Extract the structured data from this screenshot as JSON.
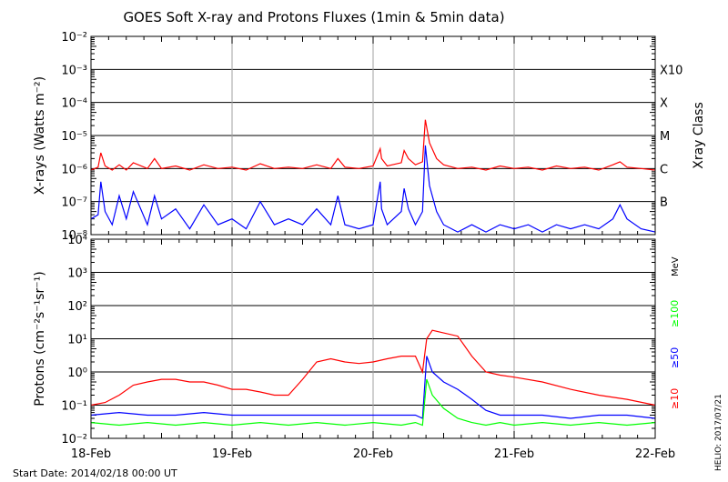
{
  "title": "GOES Soft X-ray and Protons Fluxes   (1min & 5min data)",
  "start_date": "Start Date: 2014/02/18 00:00 UT",
  "side_stamp": "HELIO: 2017/07/21",
  "colors": {
    "red": "#ff0000",
    "blue": "#0000ff",
    "green": "#00ff00",
    "grid": "#000000",
    "day": "#a0a0a0",
    "background": "#ffffff"
  },
  "chart_data": [
    {
      "type": "line",
      "panel": "xray",
      "title": "GOES Soft X-ray and Protons Fluxes   (1min & 5min data)",
      "xlabel": "",
      "ylabel": "X-rays (Watts m⁻²)",
      "y2label": "Xray Class",
      "yscale": "log",
      "ylim": [
        1e-08,
        0.01
      ],
      "ytick_labels": [
        "10⁻²",
        "10⁻³",
        "10⁻⁴",
        "10⁻⁵",
        "10⁻⁶",
        "10⁻⁷",
        "10⁻⁸"
      ],
      "class_labels": [
        "X10",
        "X",
        "M",
        "C",
        "B"
      ],
      "x_range": [
        "18-Feb",
        "22-Feb"
      ],
      "x_day_index": [
        0,
        4
      ],
      "series": [
        {
          "color": "#ff0000",
          "x": [
            0,
            0.05,
            0.07,
            0.1,
            0.15,
            0.2,
            0.25,
            0.3,
            0.4,
            0.45,
            0.5,
            0.6,
            0.7,
            0.8,
            0.9,
            1.0,
            1.1,
            1.2,
            1.3,
            1.4,
            1.5,
            1.6,
            1.7,
            1.75,
            1.8,
            1.9,
            2.0,
            2.05,
            2.06,
            2.1,
            2.2,
            2.22,
            2.25,
            2.3,
            2.35,
            2.37,
            2.4,
            2.45,
            2.5,
            2.6,
            2.7,
            2.8,
            2.9,
            3.0,
            3.1,
            3.2,
            3.3,
            3.4,
            3.5,
            3.6,
            3.7,
            3.75,
            3.8,
            3.9,
            4.0
          ],
          "y": [
            9e-07,
            1.1e-06,
            3e-06,
            1.2e-06,
            9e-07,
            1.3e-06,
            9e-07,
            1.5e-06,
            1e-06,
            2e-06,
            1e-06,
            1.2e-06,
            9e-07,
            1.3e-06,
            1e-06,
            1.1e-06,
            9e-07,
            1.4e-06,
            1e-06,
            1.1e-06,
            1e-06,
            1.3e-06,
            1e-06,
            2e-06,
            1.1e-06,
            1e-06,
            1.2e-06,
            4e-06,
            2e-06,
            1.2e-06,
            1.5e-06,
            3.5e-06,
            2e-06,
            1.3e-06,
            1.6e-06,
            3e-05,
            6e-06,
            2e-06,
            1.3e-06,
            1e-06,
            1.1e-06,
            9e-07,
            1.2e-06,
            1e-06,
            1.1e-06,
            9e-07,
            1.2e-06,
            1e-06,
            1.1e-06,
            9e-07,
            1.3e-06,
            1.6e-06,
            1.1e-06,
            1e-06,
            9e-07
          ]
        },
        {
          "color": "#0000ff",
          "x": [
            0,
            0.05,
            0.07,
            0.1,
            0.15,
            0.2,
            0.25,
            0.3,
            0.4,
            0.45,
            0.5,
            0.6,
            0.7,
            0.8,
            0.9,
            1.0,
            1.1,
            1.2,
            1.3,
            1.4,
            1.5,
            1.6,
            1.7,
            1.75,
            1.8,
            1.9,
            2.0,
            2.05,
            2.06,
            2.1,
            2.2,
            2.22,
            2.25,
            2.3,
            2.35,
            2.37,
            2.4,
            2.45,
            2.5,
            2.6,
            2.7,
            2.8,
            2.9,
            3.0,
            3.1,
            3.2,
            3.3,
            3.4,
            3.5,
            3.6,
            3.7,
            3.75,
            3.8,
            3.9,
            4.0
          ],
          "y": [
            3e-08,
            4e-08,
            4e-07,
            5e-08,
            2e-08,
            1.5e-07,
            3e-08,
            2e-07,
            2e-08,
            1.5e-07,
            3e-08,
            6e-08,
            1.5e-08,
            8e-08,
            2e-08,
            3e-08,
            1.5e-08,
            1e-07,
            2e-08,
            3e-08,
            2e-08,
            6e-08,
            2e-08,
            1.5e-07,
            2e-08,
            1.5e-08,
            2e-08,
            4e-07,
            6e-08,
            2e-08,
            5e-08,
            2.5e-07,
            6e-08,
            2e-08,
            5e-08,
            5e-06,
            3e-07,
            5e-08,
            2e-08,
            1.2e-08,
            2e-08,
            1.2e-08,
            2e-08,
            1.5e-08,
            2e-08,
            1.2e-08,
            2e-08,
            1.5e-08,
            2e-08,
            1.5e-08,
            3e-08,
            8e-08,
            3e-08,
            1.5e-08,
            1.2e-08
          ]
        }
      ]
    },
    {
      "type": "line",
      "panel": "protons",
      "xlabel": "",
      "ylabel": "Protons (cm⁻²s⁻¹sr⁻¹)",
      "yscale": "log",
      "ylim": [
        0.01,
        10000
      ],
      "ytick_labels": [
        "10⁴",
        "10³",
        "10²",
        "10¹",
        "10⁰",
        "10⁻¹",
        "10⁻²"
      ],
      "xtick_labels": [
        "18-Feb",
        "19-Feb",
        "20-Feb",
        "21-Feb",
        "22-Feb"
      ],
      "unit_label": "MeV",
      "energy_labels": [
        "≥100",
        "≥50",
        "≥10"
      ],
      "threshold": 10,
      "series": [
        {
          "color": "#ff0000",
          "x": [
            0,
            0.1,
            0.2,
            0.3,
            0.4,
            0.5,
            0.6,
            0.7,
            0.8,
            0.9,
            1.0,
            1.1,
            1.2,
            1.3,
            1.4,
            1.5,
            1.6,
            1.7,
            1.8,
            1.9,
            2.0,
            2.1,
            2.2,
            2.3,
            2.35,
            2.38,
            2.42,
            2.5,
            2.6,
            2.7,
            2.8,
            2.9,
            3.0,
            3.2,
            3.4,
            3.6,
            3.8,
            4.0
          ],
          "y": [
            0.1,
            0.12,
            0.2,
            0.4,
            0.5,
            0.6,
            0.6,
            0.5,
            0.5,
            0.4,
            0.3,
            0.3,
            0.25,
            0.2,
            0.2,
            0.6,
            2.0,
            2.5,
            2.0,
            1.8,
            2.0,
            2.5,
            3.0,
            3.0,
            1.0,
            10,
            18,
            15,
            12,
            3.0,
            1.0,
            0.8,
            0.7,
            0.5,
            0.3,
            0.2,
            0.15,
            0.1
          ]
        },
        {
          "color": "#0000ff",
          "x": [
            0,
            0.2,
            0.4,
            0.6,
            0.8,
            1.0,
            1.2,
            1.4,
            1.6,
            1.8,
            2.0,
            2.2,
            2.3,
            2.35,
            2.38,
            2.42,
            2.5,
            2.6,
            2.7,
            2.8,
            2.9,
            3.0,
            3.2,
            3.4,
            3.6,
            3.8,
            4.0
          ],
          "y": [
            0.05,
            0.06,
            0.05,
            0.05,
            0.06,
            0.05,
            0.05,
            0.05,
            0.05,
            0.05,
            0.05,
            0.05,
            0.05,
            0.04,
            3.0,
            1.0,
            0.5,
            0.3,
            0.15,
            0.07,
            0.05,
            0.05,
            0.05,
            0.04,
            0.05,
            0.05,
            0.04
          ]
        },
        {
          "color": "#00ff00",
          "x": [
            0,
            0.2,
            0.4,
            0.6,
            0.8,
            1.0,
            1.2,
            1.4,
            1.6,
            1.8,
            2.0,
            2.2,
            2.3,
            2.35,
            2.38,
            2.42,
            2.5,
            2.6,
            2.7,
            2.8,
            2.9,
            3.0,
            3.2,
            3.4,
            3.6,
            3.8,
            4.0
          ],
          "y": [
            0.03,
            0.025,
            0.03,
            0.025,
            0.03,
            0.025,
            0.03,
            0.025,
            0.03,
            0.025,
            0.03,
            0.025,
            0.03,
            0.025,
            0.6,
            0.2,
            0.08,
            0.04,
            0.03,
            0.025,
            0.03,
            0.025,
            0.03,
            0.025,
            0.03,
            0.025,
            0.03
          ]
        }
      ]
    }
  ]
}
